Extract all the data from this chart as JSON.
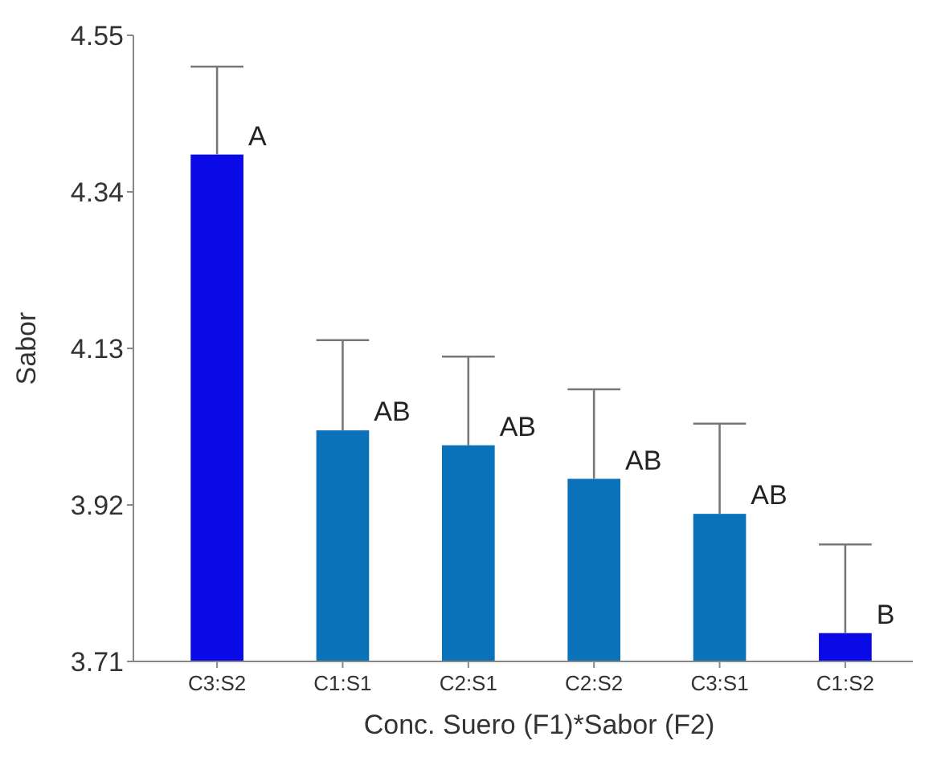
{
  "chart_data": {
    "type": "bar",
    "xlabel": "Conc. Suero (F1)*Sabor (F2)",
    "ylabel": "Sabor",
    "categories": [
      "C3:S2",
      "C1:S1",
      "C2:S1",
      "C2:S2",
      "C3:S1",
      "C1:S2"
    ],
    "values": [
      4.39,
      4.02,
      4.0,
      3.955,
      3.908,
      3.748
    ],
    "colors": [
      "#0a0ae6",
      "#0a72b8",
      "#0a72b8",
      "#0a72b8",
      "#0a72b8",
      "#0a0ae6"
    ],
    "errors": [
      [
        4.39,
        4.508
      ],
      [
        4.02,
        4.141
      ],
      [
        4.0,
        4.119
      ],
      [
        3.955,
        4.075
      ],
      [
        3.908,
        4.029
      ],
      [
        3.748,
        3.867
      ]
    ],
    "ylim": [
      3.71,
      4.55
    ],
    "yticks": [
      3.71,
      3.92,
      4.13,
      4.34,
      4.55
    ],
    "annotations": [
      {
        "text": "A",
        "x": "C3:S2",
        "y": 4.39
      },
      {
        "text": "AB",
        "x": "C1:S1",
        "y": 4.02
      },
      {
        "text": "AB",
        "x": "C2:S1",
        "y": 4.0
      },
      {
        "text": "AB",
        "x": "C2:S2",
        "y": 3.955
      },
      {
        "text": "AB",
        "x": "C3:S1",
        "y": 3.908
      },
      {
        "text": "B",
        "x": "C1:S2",
        "y": 3.748
      }
    ]
  }
}
